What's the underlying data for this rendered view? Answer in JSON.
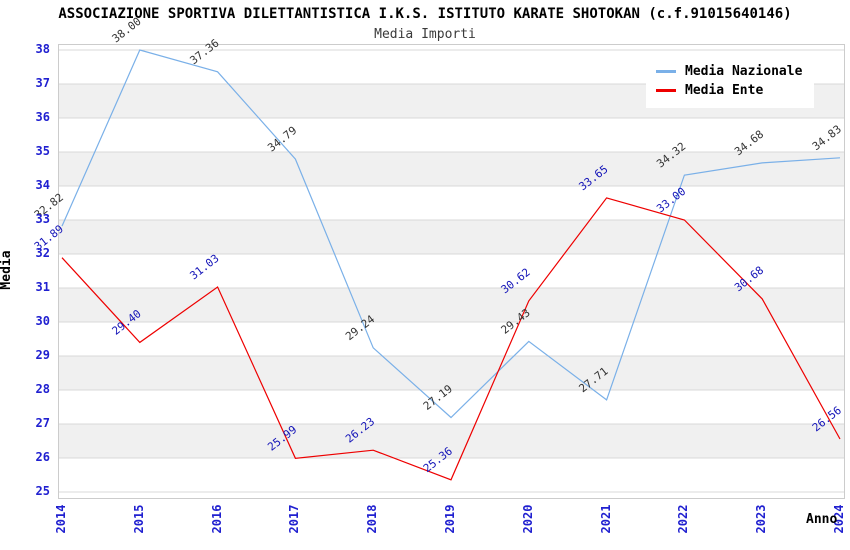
{
  "page": {
    "title": "ASSOCIAZIONE SPORTIVA DILETTANTISTICA I.K.S. ISTITUTO KARATE SHOTOKAN (c.f.91015640146)",
    "subtitle": "Media Importi"
  },
  "axes": {
    "y_title": "Media",
    "x_title": "Anno"
  },
  "legend": {
    "items": [
      {
        "label": "Media Nazionale",
        "color": "#7ab0e8"
      },
      {
        "label": "Media Ente",
        "color": "#ee0000"
      }
    ]
  },
  "chart_data": {
    "type": "line",
    "title": "ASSOCIAZIONE SPORTIVA DILETTANTISTICA I.K.S. ISTITUTO KARATE SHOTOKAN (c.f.91015640146)",
    "subtitle": "Media Importi",
    "xlabel": "Anno",
    "ylabel": "Media",
    "x": [
      2014,
      2015,
      2016,
      2017,
      2018,
      2019,
      2020,
      2021,
      2022,
      2023,
      2024
    ],
    "ylim": [
      25,
      38
    ],
    "y_tick_interval": 1,
    "grid": true,
    "legend_position": "top-right",
    "series": [
      {
        "name": "Media Nazionale",
        "color": "#7ab0e8",
        "label_color": "#333333",
        "values": [
          32.82,
          38.0,
          37.36,
          34.79,
          29.24,
          27.19,
          29.43,
          27.71,
          34.32,
          34.68,
          34.83
        ]
      },
      {
        "name": "Media Ente",
        "color": "#ee0000",
        "label_color": "#1414b8",
        "values": [
          31.89,
          29.4,
          31.03,
          25.99,
          26.23,
          25.36,
          30.62,
          33.65,
          33.0,
          30.68,
          26.56
        ]
      }
    ]
  },
  "colors": {
    "tick_label": "#2020d0",
    "band": "#f0f0f0",
    "gridline": "#d9d9d9",
    "plot_border": "#cccccc"
  }
}
